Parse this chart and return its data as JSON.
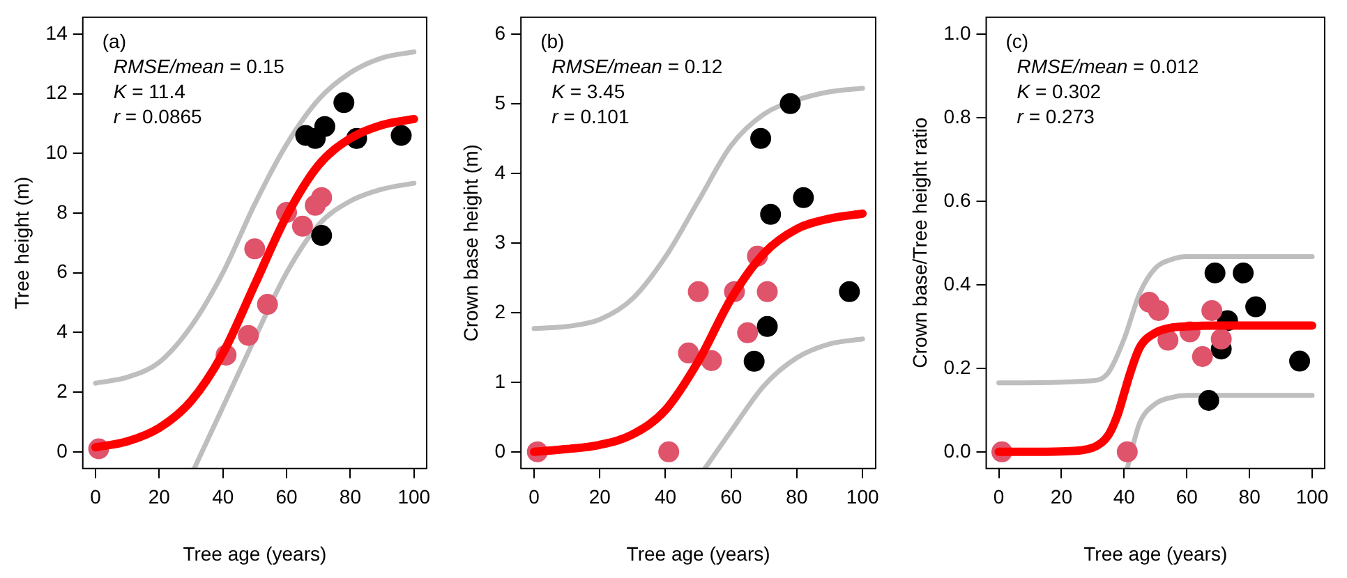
{
  "chart_data": [
    {
      "type": "scatter",
      "xlabel": "Tree age (years)",
      "ylabel": "Tree height (m)",
      "xlim": [
        -4,
        104
      ],
      "ylim": [
        -0.56,
        14.56
      ],
      "xticks": [
        0,
        20,
        40,
        60,
        80,
        100
      ],
      "yticks": [
        0,
        2,
        4,
        6,
        8,
        10,
        12,
        14
      ],
      "grid": false,
      "legend": false,
      "marker": "circle",
      "annotations": [
        "(a)",
        "RMSE/mean = 0.15",
        "K = 11.4",
        "r = 0.0865"
      ],
      "series": [
        {
          "type": "line",
          "color": "#bebebe",
          "marker": "none",
          "x": [
            0,
            10,
            20,
            30,
            40,
            50,
            60,
            70,
            80,
            90,
            100
          ],
          "values": [
            2.3,
            2.5,
            3.0,
            4.2,
            6.0,
            8.3,
            10.3,
            11.8,
            12.7,
            13.2,
            13.4
          ]
        },
        {
          "type": "line",
          "color": "#bebebe",
          "marker": "none",
          "x": [
            31,
            40,
            50,
            60,
            70,
            80,
            90,
            100
          ],
          "values": [
            -0.56,
            1.5,
            3.8,
            6.0,
            7.6,
            8.4,
            8.8,
            9.0
          ]
        },
        {
          "color": "#df536b",
          "x": [
            1,
            41,
            48,
            50,
            54,
            60,
            65,
            69,
            71
          ],
          "values": [
            0.1,
            3.24,
            3.9,
            6.8,
            4.94,
            8.02,
            7.56,
            8.26,
            8.52
          ]
        },
        {
          "color": "#000000",
          "x": [
            66,
            69,
            72,
            78,
            82,
            96,
            71
          ],
          "values": [
            10.6,
            10.5,
            10.9,
            11.7,
            10.5,
            10.6,
            7.25
          ]
        },
        {
          "type": "line",
          "color": "#ff0000",
          "marker": "none",
          "x": [
            0,
            10,
            20,
            30,
            40,
            50,
            60,
            70,
            80,
            90,
            100
          ],
          "values": [
            0.15,
            0.35,
            0.8,
            1.7,
            3.3,
            5.6,
            7.9,
            9.6,
            10.5,
            10.95,
            11.15
          ]
        }
      ]
    },
    {
      "type": "scatter",
      "xlabel": "Tree age (years)",
      "ylabel": "Crown base height (m)",
      "xlim": [
        -4,
        104
      ],
      "ylim": [
        -0.24,
        6.24
      ],
      "xticks": [
        0,
        20,
        40,
        60,
        80,
        100
      ],
      "yticks": [
        0,
        1,
        2,
        3,
        4,
        5,
        6
      ],
      "grid": false,
      "legend": false,
      "marker": "circle",
      "annotations": [
        "(b)",
        "RMSE/mean = 0.12",
        "K = 3.45",
        "r = 0.101"
      ],
      "series": [
        {
          "type": "line",
          "color": "#bebebe",
          "marker": "none",
          "x": [
            0,
            10,
            20,
            30,
            40,
            50,
            60,
            70,
            80,
            90,
            100
          ],
          "values": [
            1.77,
            1.8,
            1.9,
            2.2,
            2.8,
            3.6,
            4.4,
            4.85,
            5.05,
            5.17,
            5.22
          ]
        },
        {
          "type": "line",
          "color": "#bebebe",
          "marker": "none",
          "x": [
            52,
            60,
            70,
            80,
            90,
            100
          ],
          "values": [
            -0.24,
            0.3,
            0.95,
            1.35,
            1.55,
            1.62
          ]
        },
        {
          "color": "#df536b",
          "x": [
            1,
            41,
            47,
            50,
            54,
            61,
            68,
            71,
            65
          ],
          "values": [
            0,
            0,
            1.42,
            2.3,
            1.31,
            2.3,
            2.81,
            2.3,
            1.71
          ]
        },
        {
          "color": "#000000",
          "x": [
            67,
            71,
            72,
            69,
            78,
            82,
            96
          ],
          "values": [
            1.3,
            1.8,
            3.41,
            4.5,
            5.0,
            3.65,
            2.3
          ]
        },
        {
          "type": "line",
          "color": "#ff0000",
          "marker": "none",
          "x": [
            0,
            10,
            20,
            30,
            40,
            50,
            60,
            70,
            80,
            90,
            100
          ],
          "values": [
            0,
            0.04,
            0.1,
            0.25,
            0.6,
            1.3,
            2.2,
            2.85,
            3.2,
            3.35,
            3.42
          ]
        }
      ]
    },
    {
      "type": "scatter",
      "xlabel": "Tree age (years)",
      "ylabel": "Crown base/Tree height ratio",
      "xlim": [
        -4,
        104
      ],
      "ylim": [
        -0.04,
        1.04
      ],
      "xticks": [
        0,
        20,
        40,
        60,
        80,
        100
      ],
      "yticks": [
        {
          "value": 0,
          "label": "0.0"
        },
        0.2,
        0.4,
        0.6,
        0.8,
        {
          "value": 1,
          "label": "1.0"
        }
      ],
      "grid": false,
      "legend": false,
      "marker": "circle",
      "annotations": [
        "(c)",
        "RMSE/mean = 0.012",
        "K = 0.302",
        "r = 0.273"
      ],
      "series": [
        {
          "type": "line",
          "color": "#bebebe",
          "marker": "none",
          "x": [
            0,
            30,
            35,
            40,
            45,
            50,
            55,
            60,
            100
          ],
          "values": [
            0.165,
            0.17,
            0.19,
            0.27,
            0.38,
            0.44,
            0.46,
            0.467,
            0.467
          ]
        },
        {
          "type": "line",
          "color": "#bebebe",
          "marker": "none",
          "x": [
            41,
            43,
            45,
            50,
            55,
            60,
            100
          ],
          "values": [
            -0.04,
            0.02,
            0.07,
            0.115,
            0.13,
            0.135,
            0.135
          ]
        },
        {
          "color": "#df536b",
          "x": [
            1,
            41,
            48,
            51,
            54,
            61,
            65,
            68,
            71
          ],
          "values": [
            0,
            0,
            0.358,
            0.338,
            0.267,
            0.287,
            0.228,
            0.338,
            0.27
          ]
        },
        {
          "color": "#000000",
          "x": [
            67,
            69,
            73,
            71,
            78,
            82,
            96
          ],
          "values": [
            0.123,
            0.428,
            0.314,
            0.246,
            0.428,
            0.347,
            0.217
          ]
        },
        {
          "type": "line",
          "color": "#ff0000",
          "marker": "none",
          "x": [
            0,
            10,
            20,
            30,
            35,
            38,
            40,
            42,
            45,
            50,
            55,
            60,
            70,
            100
          ],
          "values": [
            0,
            0,
            0.001,
            0.01,
            0.04,
            0.09,
            0.14,
            0.19,
            0.25,
            0.285,
            0.297,
            0.3,
            0.302,
            0.302
          ]
        }
      ]
    }
  ]
}
